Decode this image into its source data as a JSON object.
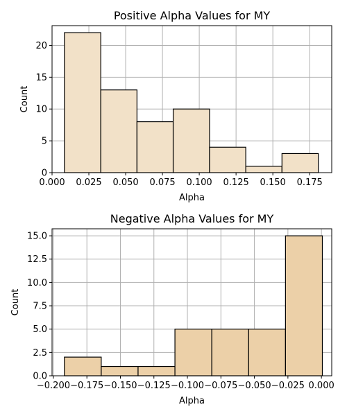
{
  "chart_data": [
    {
      "type": "bar",
      "title": "Positive Alpha Values for MY",
      "xlabel": "Alpha",
      "ylabel": "Count",
      "bar_color": "#f2e1c8",
      "bins": [
        {
          "x0": 0.0084,
          "x1": 0.0331,
          "count": 22
        },
        {
          "x0": 0.0331,
          "x1": 0.0577,
          "count": 13
        },
        {
          "x0": 0.0577,
          "x1": 0.0823,
          "count": 8
        },
        {
          "x0": 0.0823,
          "x1": 0.107,
          "count": 10
        },
        {
          "x0": 0.107,
          "x1": 0.1316,
          "count": 4
        },
        {
          "x0": 0.1316,
          "x1": 0.1562,
          "count": 1
        },
        {
          "x0": 0.1562,
          "x1": 0.1809,
          "count": 3
        }
      ],
      "xlim": [
        0.0,
        0.19
      ],
      "ylim": [
        0,
        23.1
      ],
      "xticks": [
        0.0,
        0.025,
        0.05,
        0.075,
        0.1,
        0.125,
        0.15,
        0.175
      ],
      "xtick_labels": [
        "0.000",
        "0.025",
        "0.050",
        "0.075",
        "0.100",
        "0.125",
        "0.150",
        "0.175"
      ],
      "yticks": [
        0,
        5,
        10,
        15,
        20
      ],
      "ytick_labels": [
        "0",
        "5",
        "10",
        "15",
        "20"
      ],
      "grid": true
    },
    {
      "type": "bar",
      "title": "Negative Alpha Values for MY",
      "xlabel": "Alpha",
      "ylabel": "Count",
      "bar_color": "#ecd0a8",
      "bins": [
        {
          "x0": -0.1918,
          "x1": -0.1643,
          "count": 2
        },
        {
          "x0": -0.1643,
          "x1": -0.1368,
          "count": 1
        },
        {
          "x0": -0.1368,
          "x1": -0.1093,
          "count": 1
        },
        {
          "x0": -0.1093,
          "x1": -0.0818,
          "count": 5
        },
        {
          "x0": -0.0818,
          "x1": -0.0543,
          "count": 5
        },
        {
          "x0": -0.0543,
          "x1": -0.0268,
          "count": 5
        },
        {
          "x0": -0.0268,
          "x1": 0.0007,
          "count": 15
        }
      ],
      "xlim": [
        -0.201,
        0.0077
      ],
      "ylim": [
        0,
        15.75
      ],
      "xticks": [
        -0.2,
        -0.175,
        -0.15,
        -0.125,
        -0.1,
        -0.075,
        -0.05,
        -0.025,
        0.0
      ],
      "xtick_labels": [
        "−0.200",
        "−0.175",
        "−0.150",
        "−0.125",
        "−0.100",
        "−0.075",
        "−0.050",
        "−0.025",
        "0.000"
      ],
      "yticks": [
        0,
        2.5,
        5,
        7.5,
        10,
        12.5,
        15
      ],
      "ytick_labels": [
        "0.0",
        "2.5",
        "5.0",
        "7.5",
        "10.0",
        "12.5",
        "15.0"
      ],
      "grid": true
    }
  ]
}
